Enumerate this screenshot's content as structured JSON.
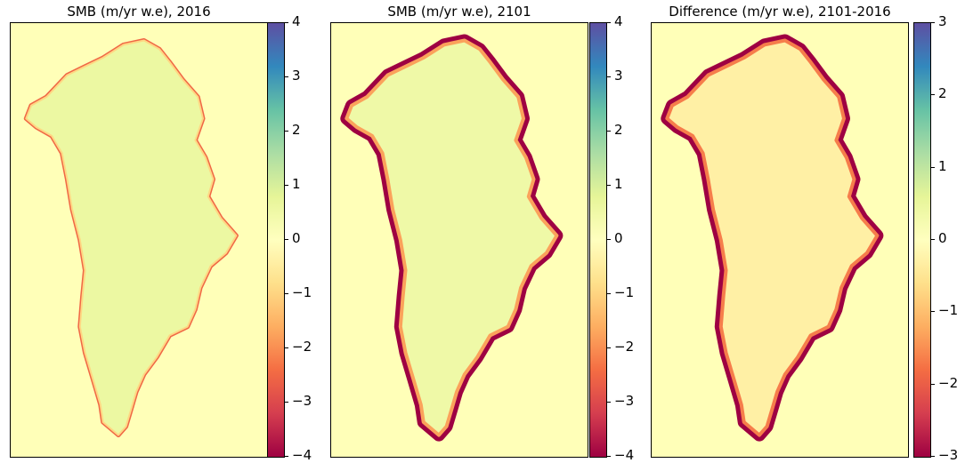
{
  "chart_data": [
    {
      "type": "heatmap",
      "title": "SMB (m/yr w.e), 2016",
      "colorbar": {
        "min": -4,
        "max": 4,
        "ticks": [
          "4",
          "3",
          "2",
          "1",
          "0",
          "−1",
          "−2",
          "−3",
          "−4"
        ],
        "tick_values": [
          4,
          3,
          2,
          1,
          0,
          -1,
          -2,
          -3,
          -4
        ]
      },
      "colormap": "Spectral",
      "interior_value": 0.6,
      "margin_value": -2.5,
      "margin_extent": "thin"
    },
    {
      "type": "heatmap",
      "title": "SMB (m/yr w.e), 2101",
      "colorbar": {
        "min": -4,
        "max": 4,
        "ticks": [
          "4",
          "3",
          "2",
          "1",
          "0",
          "−1",
          "−2",
          "−3",
          "−4"
        ],
        "tick_values": [
          4,
          3,
          2,
          1,
          0,
          -1,
          -2,
          -3,
          -4
        ]
      },
      "colormap": "Spectral",
      "interior_value": 0.5,
      "margin_value": -4,
      "margin_extent": "wide"
    },
    {
      "type": "heatmap",
      "title": "Difference (m/yr w.e), 2101-2016",
      "colorbar": {
        "min": -3,
        "max": 3,
        "ticks": [
          "3",
          "2",
          "1",
          "0",
          "−1",
          "−2",
          "−3"
        ],
        "tick_values": [
          3,
          2,
          1,
          0,
          -1,
          -2,
          -3
        ]
      },
      "colormap": "Spectral",
      "interior_value": -0.3,
      "margin_value": -3,
      "margin_extent": "wide"
    }
  ],
  "colors": {
    "background_ocean": "#ffffb8",
    "spectral": [
      "#9e0142",
      "#d53e4f",
      "#f46d43",
      "#fdae61",
      "#fee08b",
      "#ffffbf",
      "#e6f598",
      "#abdda4",
      "#66c2a5",
      "#3288bd",
      "#5e4fa2"
    ]
  }
}
